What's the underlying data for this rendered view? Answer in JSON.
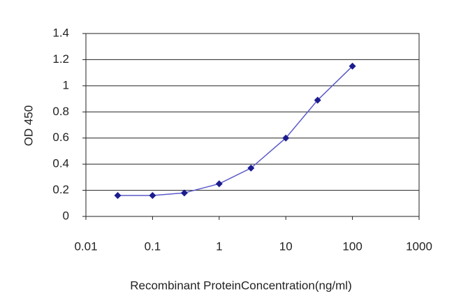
{
  "chart_data": {
    "type": "line",
    "x_label": "Recombinant ProteinConcentration(ng/ml)",
    "y_label": "OD 450",
    "x": [
      0.03,
      0.1,
      0.3,
      1,
      3,
      10,
      30,
      100
    ],
    "series": [
      {
        "color": "#1c1c8f",
        "values": [
          0.16,
          0.16,
          0.18,
          0.25,
          0.37,
          0.6,
          0.89,
          1.15
        ]
      }
    ],
    "xlim": [
      0.01,
      1000
    ],
    "xticks": [
      0.01,
      0.1,
      1,
      10,
      100,
      1000
    ],
    "xscale": "log",
    "ylim": [
      0,
      1.4
    ],
    "yticks": [
      0,
      0.2,
      0.4,
      0.6,
      0.8,
      1,
      1.2,
      1.4
    ],
    "grid": true
  }
}
